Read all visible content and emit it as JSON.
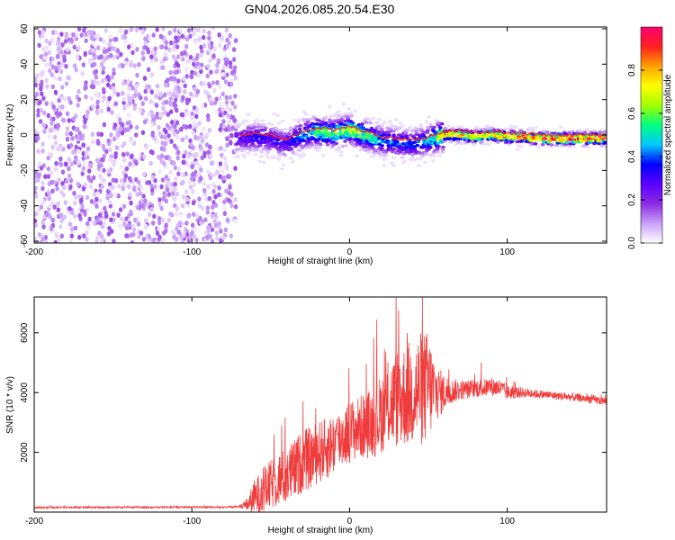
{
  "figure_title": "GN04.2026.085.20.54.E30",
  "colors": {
    "snr_line": "#f03c3c",
    "background": "#ffffff",
    "axis": "#000000",
    "colormap_stops": [
      "#ffffff",
      "#c8a0f8",
      "#8a2be2",
      "#5a00ff",
      "#0000ff",
      "#00c8ff",
      "#00ff80",
      "#a0ff00",
      "#ffff00",
      "#ffa000",
      "#ff2020",
      "#ff0070"
    ]
  },
  "chart_data": [
    {
      "id": "spectrogram",
      "type": "heatmap",
      "title": "GN04.2026.085.20.54.E30",
      "xlabel": "Height of straight line (km)",
      "ylabel": "Frequency (Hz)",
      "xlim": [
        -200,
        163
      ],
      "ylim": [
        -61,
        61
      ],
      "xticks": [
        -200,
        -100,
        0,
        100
      ],
      "xtick_labels": [
        "-200",
        "-100",
        "0",
        "100"
      ],
      "yticks": [
        -60,
        -40,
        -20,
        0,
        20,
        40,
        60
      ],
      "ytick_labels": [
        "-60",
        "-40",
        "-20",
        "0",
        "20",
        "40",
        "60"
      ],
      "colorbar": {
        "label": "Normalized spectral amplitude",
        "range": [
          0,
          1
        ],
        "ticks": [
          0.0,
          0.2,
          0.4,
          0.6,
          0.8
        ],
        "tick_labels": [
          "0.0",
          "0.2",
          "0.4",
          "0.6",
          "0.8"
        ]
      },
      "regions": [
        {
          "x_range": [
            -200,
            -72
          ],
          "freq_range": [
            -61,
            61
          ],
          "description_level": 0.12
        },
        {
          "x_range": [
            -72,
            163
          ],
          "freq_range": [
            -18,
            10
          ],
          "description_level": 0.45
        }
      ],
      "signal_ridge": {
        "x": [
          -70,
          -60,
          -50,
          -40,
          -30,
          -20,
          -10,
          0,
          10,
          20,
          30,
          40,
          50,
          60,
          70,
          80,
          90,
          100,
          110,
          120,
          130,
          140,
          150,
          160
        ],
        "freq": [
          0,
          1,
          0,
          -3,
          2,
          4,
          3,
          5,
          2,
          -1,
          -2,
          -3,
          -1,
          2,
          2,
          1,
          2,
          1,
          1,
          0,
          0,
          0,
          0,
          0
        ],
        "amplitude": [
          0.25,
          0.35,
          0.3,
          0.3,
          0.45,
          0.55,
          0.6,
          0.65,
          0.6,
          0.45,
          0.4,
          0.4,
          0.45,
          0.75,
          0.8,
          0.75,
          0.75,
          0.8,
          0.85,
          0.9,
          0.9,
          0.92,
          0.95,
          0.95
        ]
      }
    },
    {
      "id": "snr",
      "type": "line",
      "title": "",
      "xlabel": "Height of straight line (km)",
      "ylabel": "SNR (10 * v/v)",
      "xlim": [
        -200,
        163
      ],
      "ylim": [
        0,
        7200
      ],
      "xticks": [
        -200,
        -100,
        0,
        100
      ],
      "xtick_labels": [
        "-200",
        "-100",
        "0",
        "100"
      ],
      "yticks": [
        2000,
        4000,
        6000
      ],
      "ytick_labels": [
        "2000",
        "4000",
        "6000"
      ],
      "series": [
        {
          "name": "SNR",
          "x": [
            -200,
            -180,
            -160,
            -140,
            -120,
            -100,
            -80,
            -70,
            -65,
            -60,
            -55,
            -50,
            -45,
            -40,
            -35,
            -30,
            -25,
            -20,
            -15,
            -10,
            -5,
            0,
            5,
            10,
            15,
            20,
            25,
            30,
            35,
            40,
            45,
            50,
            55,
            60,
            65,
            70,
            75,
            80,
            85,
            90,
            95,
            100,
            110,
            120,
            130,
            140,
            150,
            163
          ],
          "y": [
            150,
            160,
            155,
            165,
            160,
            170,
            165,
            180,
            250,
            500,
            700,
            900,
            1100,
            1200,
            1400,
            1700,
            1800,
            2000,
            2100,
            2300,
            2500,
            2700,
            2800,
            2900,
            3000,
            3300,
            3600,
            3800,
            3900,
            4000,
            4100,
            4200,
            4000,
            4000,
            4050,
            4100,
            4100,
            4150,
            4150,
            4200,
            4150,
            4000,
            4000,
            3950,
            3900,
            3850,
            3800,
            3700
          ],
          "noise_envelope": [
            40,
            40,
            40,
            40,
            40,
            40,
            40,
            40,
            300,
            900,
            1100,
            1200,
            1300,
            1400,
            1500,
            1500,
            1500,
            1500,
            1500,
            1500,
            1500,
            1500,
            1500,
            1600,
            1700,
            1900,
            2100,
            2400,
            2500,
            2600,
            2800,
            2700,
            1400,
            900,
            600,
            500,
            450,
            450,
            450,
            450,
            450,
            350,
            250,
            200,
            200,
            200,
            200,
            200
          ]
        }
      ]
    }
  ]
}
